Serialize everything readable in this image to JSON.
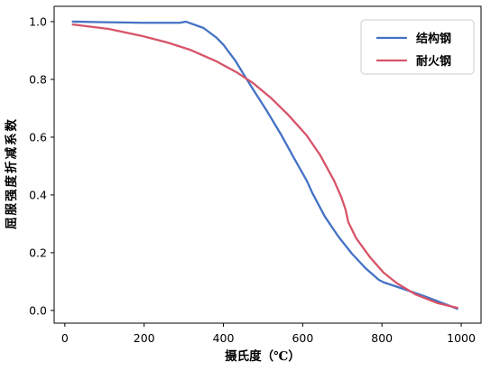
{
  "chart_data": {
    "type": "line",
    "xlabel": "摄氏度（℃）",
    "ylabel": "屈服强度折减系数",
    "xlim": [
      -27,
      1050
    ],
    "ylim": [
      -0.044,
      1.053
    ],
    "xticks": [
      0,
      200,
      400,
      600,
      800,
      1000
    ],
    "xtick_labels": [
      "0",
      "200",
      "400",
      "600",
      "800",
      "1000"
    ],
    "yticks": [
      0.0,
      0.2,
      0.4,
      0.6,
      0.8,
      1.0
    ],
    "ytick_labels": [
      "0.0",
      "0.2",
      "0.4",
      "0.6",
      "0.8",
      "1.0"
    ],
    "grid": false,
    "legend": "top-right",
    "series": [
      {
        "name": "结构钢",
        "color": "#4472c4",
        "x": [
          20,
          100,
          200,
          290,
          305,
          350,
          383,
          400,
          430,
          450,
          475,
          510,
          545,
          575,
          610,
          625,
          656,
          690,
          724,
          758,
          792,
          805,
          840,
          906,
          990
        ],
        "y": [
          1.0,
          0.998,
          0.996,
          0.996,
          1.0,
          0.978,
          0.944,
          0.92,
          0.865,
          0.82,
          0.765,
          0.69,
          0.61,
          0.535,
          0.45,
          0.405,
          0.325,
          0.256,
          0.197,
          0.147,
          0.106,
          0.097,
          0.081,
          0.05,
          0.006
        ]
      },
      {
        "name": "耐火钢",
        "color": "#d75468",
        "x": [
          20,
          110,
          196,
          258,
          315,
          383,
          433,
          474,
          519,
          565,
          610,
          644,
          679,
          697,
          708,
          715,
          735,
          770,
          804,
          838,
          884,
          941,
          990
        ],
        "y": [
          0.99,
          0.975,
          0.95,
          0.928,
          0.903,
          0.862,
          0.825,
          0.788,
          0.737,
          0.675,
          0.606,
          0.538,
          0.45,
          0.394,
          0.35,
          0.306,
          0.25,
          0.184,
          0.131,
          0.094,
          0.056,
          0.025,
          0.009
        ]
      }
    ]
  }
}
